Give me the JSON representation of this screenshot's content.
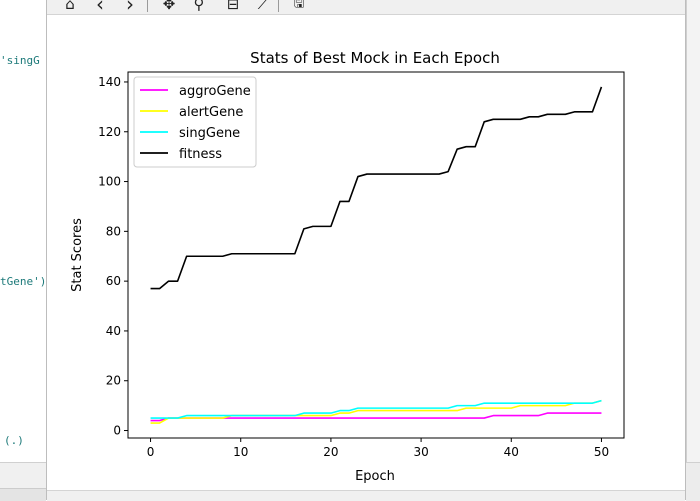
{
  "editor": {
    "code_fragments": [
      "'singG",
      "tGene')",
      "(.)"
    ]
  },
  "toolbar": {
    "buttons": [
      {
        "name": "home-icon",
        "glyph": "⌂"
      },
      {
        "name": "back-icon",
        "glyph": "‹"
      },
      {
        "name": "forward-icon",
        "glyph": "›"
      },
      {
        "name": "pan-icon",
        "glyph": "✥"
      },
      {
        "name": "zoom-icon",
        "glyph": "⚲"
      },
      {
        "name": "configure-subplots-icon",
        "glyph": "⊟"
      },
      {
        "name": "edit-axis-icon",
        "glyph": "⟋"
      },
      {
        "name": "save-icon",
        "glyph": "🖫"
      }
    ]
  },
  "chart_data": {
    "type": "line",
    "title": "Stats of Best Mock in Each Epoch",
    "xlabel": "Epoch",
    "ylabel": "Stat Scores",
    "xlim": [
      -2.5,
      52.5
    ],
    "ylim": [
      -3,
      144
    ],
    "xticks": [
      0,
      10,
      20,
      30,
      40,
      50
    ],
    "yticks": [
      0,
      20,
      40,
      60,
      80,
      100,
      120,
      140
    ],
    "legend_position": "top-left",
    "grid": false,
    "x": [
      0,
      1,
      2,
      3,
      4,
      5,
      6,
      7,
      8,
      9,
      10,
      11,
      12,
      13,
      14,
      15,
      16,
      17,
      18,
      19,
      20,
      21,
      22,
      23,
      24,
      25,
      26,
      27,
      28,
      29,
      30,
      31,
      32,
      33,
      34,
      35,
      36,
      37,
      38,
      39,
      40,
      41,
      42,
      43,
      44,
      45,
      46,
      47,
      48,
      49,
      50
    ],
    "series": [
      {
        "name": "aggroGene",
        "color": "#ff00ff",
        "values": [
          4,
          4,
          5,
          5,
          5,
          5,
          5,
          5,
          5,
          5,
          5,
          5,
          5,
          5,
          5,
          5,
          5,
          5,
          5,
          5,
          5,
          5,
          5,
          5,
          5,
          5,
          5,
          5,
          5,
          5,
          5,
          5,
          5,
          5,
          5,
          5,
          5,
          5,
          6,
          6,
          6,
          6,
          6,
          6,
          7,
          7,
          7,
          7,
          7,
          7,
          7
        ]
      },
      {
        "name": "alertGene",
        "color": "#ffff00",
        "values": [
          3,
          3,
          5,
          5,
          5,
          5,
          5,
          5,
          5,
          6,
          6,
          6,
          6,
          6,
          6,
          6,
          6,
          6,
          6,
          6,
          6,
          7,
          7,
          8,
          8,
          8,
          8,
          8,
          8,
          8,
          8,
          8,
          8,
          8,
          8,
          9,
          9,
          9,
          9,
          9,
          9,
          10,
          10,
          10,
          10,
          10,
          10,
          11,
          11,
          11,
          12
        ]
      },
      {
        "name": "singGene",
        "color": "#00ffff",
        "values": [
          5,
          5,
          5,
          5,
          6,
          6,
          6,
          6,
          6,
          6,
          6,
          6,
          6,
          6,
          6,
          6,
          6,
          7,
          7,
          7,
          7,
          8,
          8,
          9,
          9,
          9,
          9,
          9,
          9,
          9,
          9,
          9,
          9,
          9,
          10,
          10,
          10,
          11,
          11,
          11,
          11,
          11,
          11,
          11,
          11,
          11,
          11,
          11,
          11,
          11,
          12
        ]
      },
      {
        "name": "fitness",
        "color": "#000000",
        "values": [
          57,
          57,
          60,
          60,
          70,
          70,
          70,
          70,
          70,
          71,
          71,
          71,
          71,
          71,
          71,
          71,
          71,
          81,
          82,
          82,
          82,
          92,
          92,
          102,
          103,
          103,
          103,
          103,
          103,
          103,
          103,
          103,
          103,
          104,
          113,
          114,
          114,
          124,
          125,
          125,
          125,
          125,
          126,
          126,
          127,
          127,
          127,
          128,
          128,
          128,
          138
        ]
      }
    ]
  }
}
